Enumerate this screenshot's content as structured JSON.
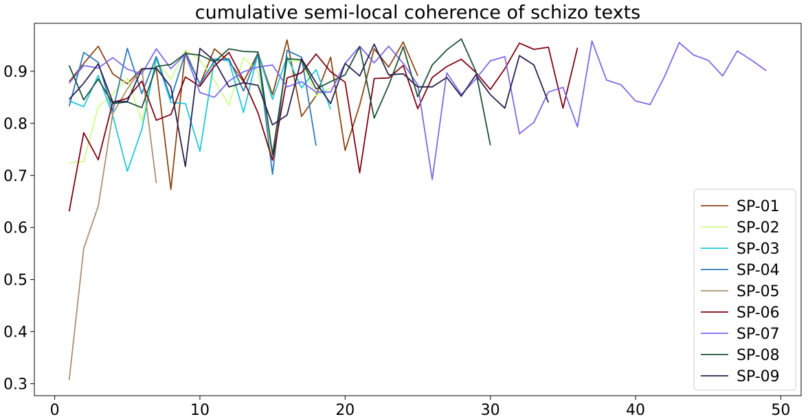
{
  "chart_data": {
    "type": "line",
    "title": "cumulative semi-local coherence of schizo texts",
    "xlabel": "",
    "ylabel": "",
    "xlim": [
      -1.4,
      51.4
    ],
    "ylim": [
      0.277,
      0.992
    ],
    "xticks": [
      0,
      10,
      20,
      30,
      40,
      50
    ],
    "yticks": [
      0.3,
      0.4,
      0.5,
      0.6,
      0.7,
      0.8,
      0.9
    ],
    "grid": false,
    "legend": "bottom-right",
    "series": [
      {
        "name": "SP-01",
        "color": "#8b4513",
        "x": [
          1,
          2,
          3,
          4,
          5,
          6,
          7,
          8,
          9,
          10,
          11,
          12,
          13,
          14,
          15,
          16,
          17,
          18,
          19,
          20,
          21,
          22,
          23,
          24,
          25
        ],
        "y": [
          0.88,
          0.915,
          0.948,
          0.895,
          0.876,
          0.905,
          0.905,
          0.673,
          0.938,
          0.875,
          0.943,
          0.919,
          0.88,
          0.935,
          0.855,
          0.96,
          0.813,
          0.853,
          0.927,
          0.748,
          0.835,
          0.943,
          0.908,
          0.956,
          0.891
        ]
      },
      {
        "name": "SP-02",
        "color": "#ccff88",
        "x": [
          1,
          2,
          3,
          4,
          5,
          6,
          7,
          8,
          9,
          10,
          11,
          12,
          13,
          14,
          15,
          16,
          17,
          18,
          19
        ],
        "y": [
          0.724,
          0.727,
          0.832,
          0.856,
          0.887,
          0.804,
          0.918,
          0.885,
          0.94,
          0.922,
          0.882,
          0.835,
          0.926,
          0.9,
          0.738,
          0.921,
          0.918,
          0.853,
          0.868
        ]
      },
      {
        "name": "SP-03",
        "color": "#1ec8d8",
        "x": [
          1,
          2,
          3,
          4,
          5,
          6,
          7,
          8,
          9,
          10,
          11,
          12,
          13,
          14,
          15,
          16,
          17,
          18,
          19
        ],
        "y": [
          0.843,
          0.832,
          0.892,
          0.815,
          0.708,
          0.788,
          0.926,
          0.84,
          0.838,
          0.746,
          0.924,
          0.92,
          0.821,
          0.934,
          0.846,
          0.928,
          0.868,
          0.903,
          0.827
        ]
      },
      {
        "name": "SP-04",
        "color": "#2b7bba",
        "x": [
          1,
          2,
          3,
          4,
          5,
          6,
          7,
          8,
          9,
          10,
          11,
          12,
          13,
          14,
          15,
          16,
          17,
          18
        ],
        "y": [
          0.833,
          0.936,
          0.917,
          0.823,
          0.944,
          0.857,
          0.928,
          0.847,
          0.935,
          0.875,
          0.92,
          0.924,
          0.862,
          0.934,
          0.702,
          0.94,
          0.927,
          0.757
        ]
      },
      {
        "name": "SP-05",
        "color": "#a89070",
        "x": [
          1,
          2,
          3,
          4,
          5,
          6,
          7
        ],
        "y": [
          0.307,
          0.56,
          0.641,
          0.818,
          0.866,
          0.905,
          0.685
        ]
      },
      {
        "name": "SP-06",
        "color": "#800010",
        "x": [
          1,
          2,
          3,
          4,
          5,
          6,
          7,
          8,
          9,
          10,
          11,
          12,
          13,
          14,
          15,
          16,
          17,
          18,
          19,
          20,
          21,
          22,
          23,
          24,
          25,
          26,
          27,
          28,
          29,
          30,
          31,
          32,
          33,
          34,
          35,
          36
        ],
        "y": [
          0.631,
          0.782,
          0.73,
          0.84,
          0.848,
          0.881,
          0.806,
          0.817,
          0.889,
          0.871,
          0.91,
          0.936,
          0.883,
          0.82,
          0.729,
          0.887,
          0.897,
          0.933,
          0.899,
          0.879,
          0.705,
          0.886,
          0.887,
          0.911,
          0.828,
          0.888,
          0.909,
          0.923,
          0.898,
          0.865,
          0.905,
          0.954,
          0.942,
          0.946,
          0.829,
          0.945
        ]
      },
      {
        "name": "SP-07",
        "color": "#7b68ee",
        "x": [
          1,
          2,
          3,
          4,
          5,
          6,
          7,
          8,
          9,
          10,
          11,
          12,
          13,
          14,
          15,
          16,
          17,
          18,
          19,
          20,
          21,
          22,
          23,
          24,
          25,
          26,
          27,
          28,
          29,
          30,
          31,
          32,
          33,
          34,
          35,
          36,
          37,
          38,
          39,
          40,
          41,
          42,
          43,
          44,
          45,
          46,
          47,
          48,
          49
        ],
        "y": [
          0.877,
          0.911,
          0.906,
          0.926,
          0.904,
          0.895,
          0.943,
          0.905,
          0.933,
          0.859,
          0.85,
          0.881,
          0.899,
          0.908,
          0.912,
          0.87,
          0.88,
          0.86,
          0.86,
          0.915,
          0.948,
          0.916,
          0.948,
          0.915,
          0.874,
          0.692,
          0.897,
          0.855,
          0.885,
          0.92,
          0.928,
          0.78,
          0.802,
          0.86,
          0.869,
          0.793,
          0.958,
          0.883,
          0.874,
          0.843,
          0.836,
          0.89,
          0.955,
          0.931,
          0.921,
          0.891,
          0.939,
          0.921,
          0.901
        ]
      },
      {
        "name": "SP-08",
        "color": "#1e5038",
        "x": [
          1,
          2,
          3,
          4,
          5,
          6,
          7,
          8,
          9,
          10,
          11,
          12,
          13,
          14,
          15,
          16,
          17,
          18,
          19,
          20,
          21,
          22,
          23,
          24,
          25,
          26,
          27,
          28,
          29,
          30
        ],
        "y": [
          0.911,
          0.845,
          0.885,
          0.838,
          0.841,
          0.83,
          0.909,
          0.913,
          0.934,
          0.931,
          0.918,
          0.943,
          0.938,
          0.937,
          0.74,
          0.924,
          0.922,
          0.866,
          0.88,
          0.893,
          0.947,
          0.81,
          0.873,
          0.947,
          0.851,
          0.912,
          0.941,
          0.962,
          0.9,
          0.758
        ]
      },
      {
        "name": "SP-09",
        "color": "#28204c",
        "x": [
          1,
          2,
          3,
          4,
          5,
          6,
          7,
          8,
          9,
          10,
          11,
          12,
          13,
          14,
          15,
          16,
          17,
          18,
          19,
          20,
          21,
          22,
          23,
          24,
          25,
          26,
          27,
          28,
          29,
          30,
          31,
          32,
          33,
          34
        ],
        "y": [
          0.846,
          0.877,
          0.914,
          0.841,
          0.842,
          0.904,
          0.906,
          0.87,
          0.717,
          0.944,
          0.92,
          0.87,
          0.878,
          0.873,
          0.797,
          0.816,
          0.924,
          0.878,
          0.838,
          0.915,
          0.891,
          0.952,
          0.893,
          0.895,
          0.87,
          0.87,
          0.888,
          0.852,
          0.893,
          0.855,
          0.829,
          0.93,
          0.912,
          0.84
        ]
      }
    ]
  }
}
